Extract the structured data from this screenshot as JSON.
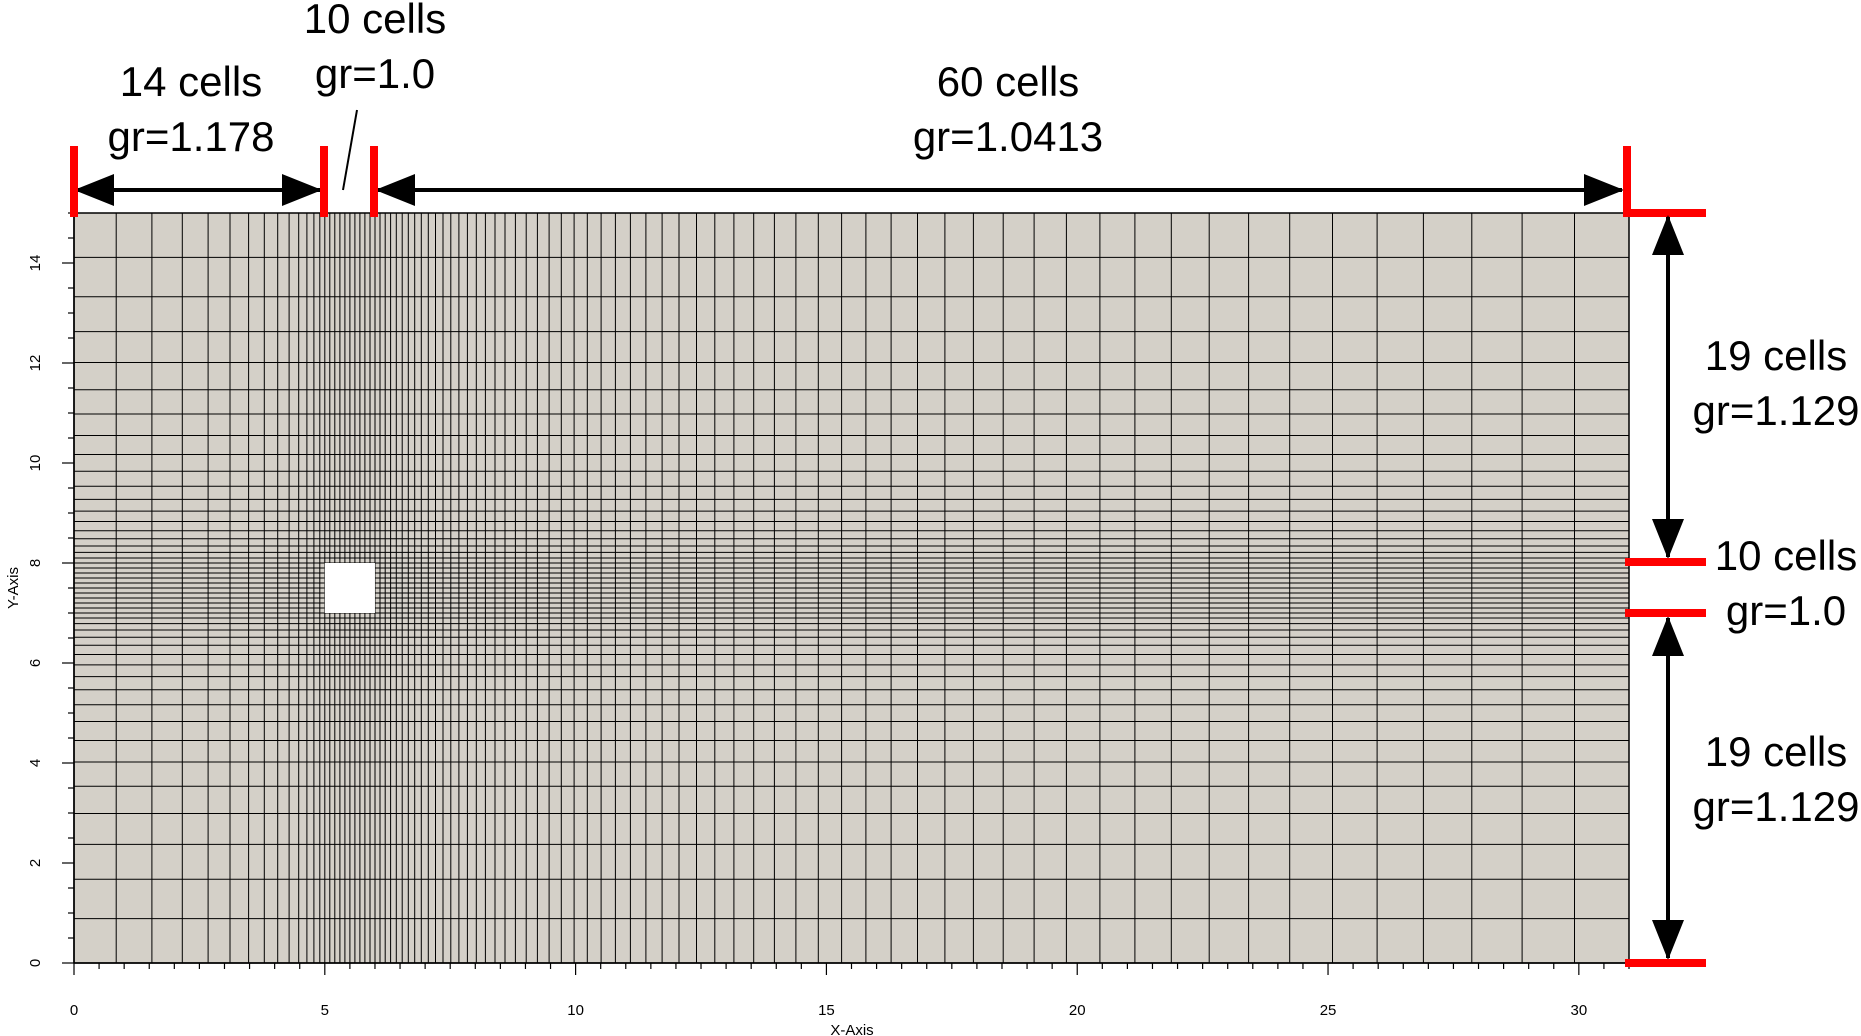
{
  "x_axis": {
    "label": "X-Axis",
    "min": 0,
    "max": 31,
    "ticks": [
      0,
      5,
      10,
      15,
      20,
      25,
      30
    ],
    "minor_step": 0.5
  },
  "y_axis": {
    "label": "Y-Axis",
    "min": 0,
    "max": 15,
    "ticks": [
      0,
      2,
      4,
      6,
      8,
      10,
      12,
      14
    ],
    "minor_step": 0.5
  },
  "obstacle": {
    "x0": 5,
    "x1": 6,
    "y0": 7,
    "y1": 8
  },
  "colors": {
    "mesh_fill": "#d4d0c8",
    "mesh_line": "#000000",
    "marker": "#ff0000",
    "obstacle": "#ffffff"
  },
  "x_blocks": [
    {
      "cells_label": "14 cells",
      "gr_label": "gr=1.178",
      "from": 0,
      "to": 5,
      "cells": 14,
      "ratio": 1.178
    },
    {
      "cells_label": "10 cells",
      "gr_label": "gr=1.0",
      "from": 5,
      "to": 6,
      "cells": 10,
      "ratio": 1.0
    },
    {
      "cells_label": "60 cells",
      "gr_label": "gr=1.0413",
      "from": 6,
      "to": 31,
      "cells": 60,
      "ratio": 1.0413
    }
  ],
  "y_blocks": [
    {
      "cells_label": "19 cells",
      "gr_label": "gr=1.129",
      "from": 8,
      "to": 15,
      "cells": 19,
      "ratio": 1.129
    },
    {
      "cells_label": "10 cells",
      "gr_label": "gr=1.0",
      "from": 7,
      "to": 8,
      "cells": 10,
      "ratio": 1.0
    },
    {
      "cells_label": "19 cells",
      "gr_label": "gr=1.129",
      "from": 0,
      "to": 7,
      "cells": 19,
      "ratio": 1.129
    }
  ]
}
